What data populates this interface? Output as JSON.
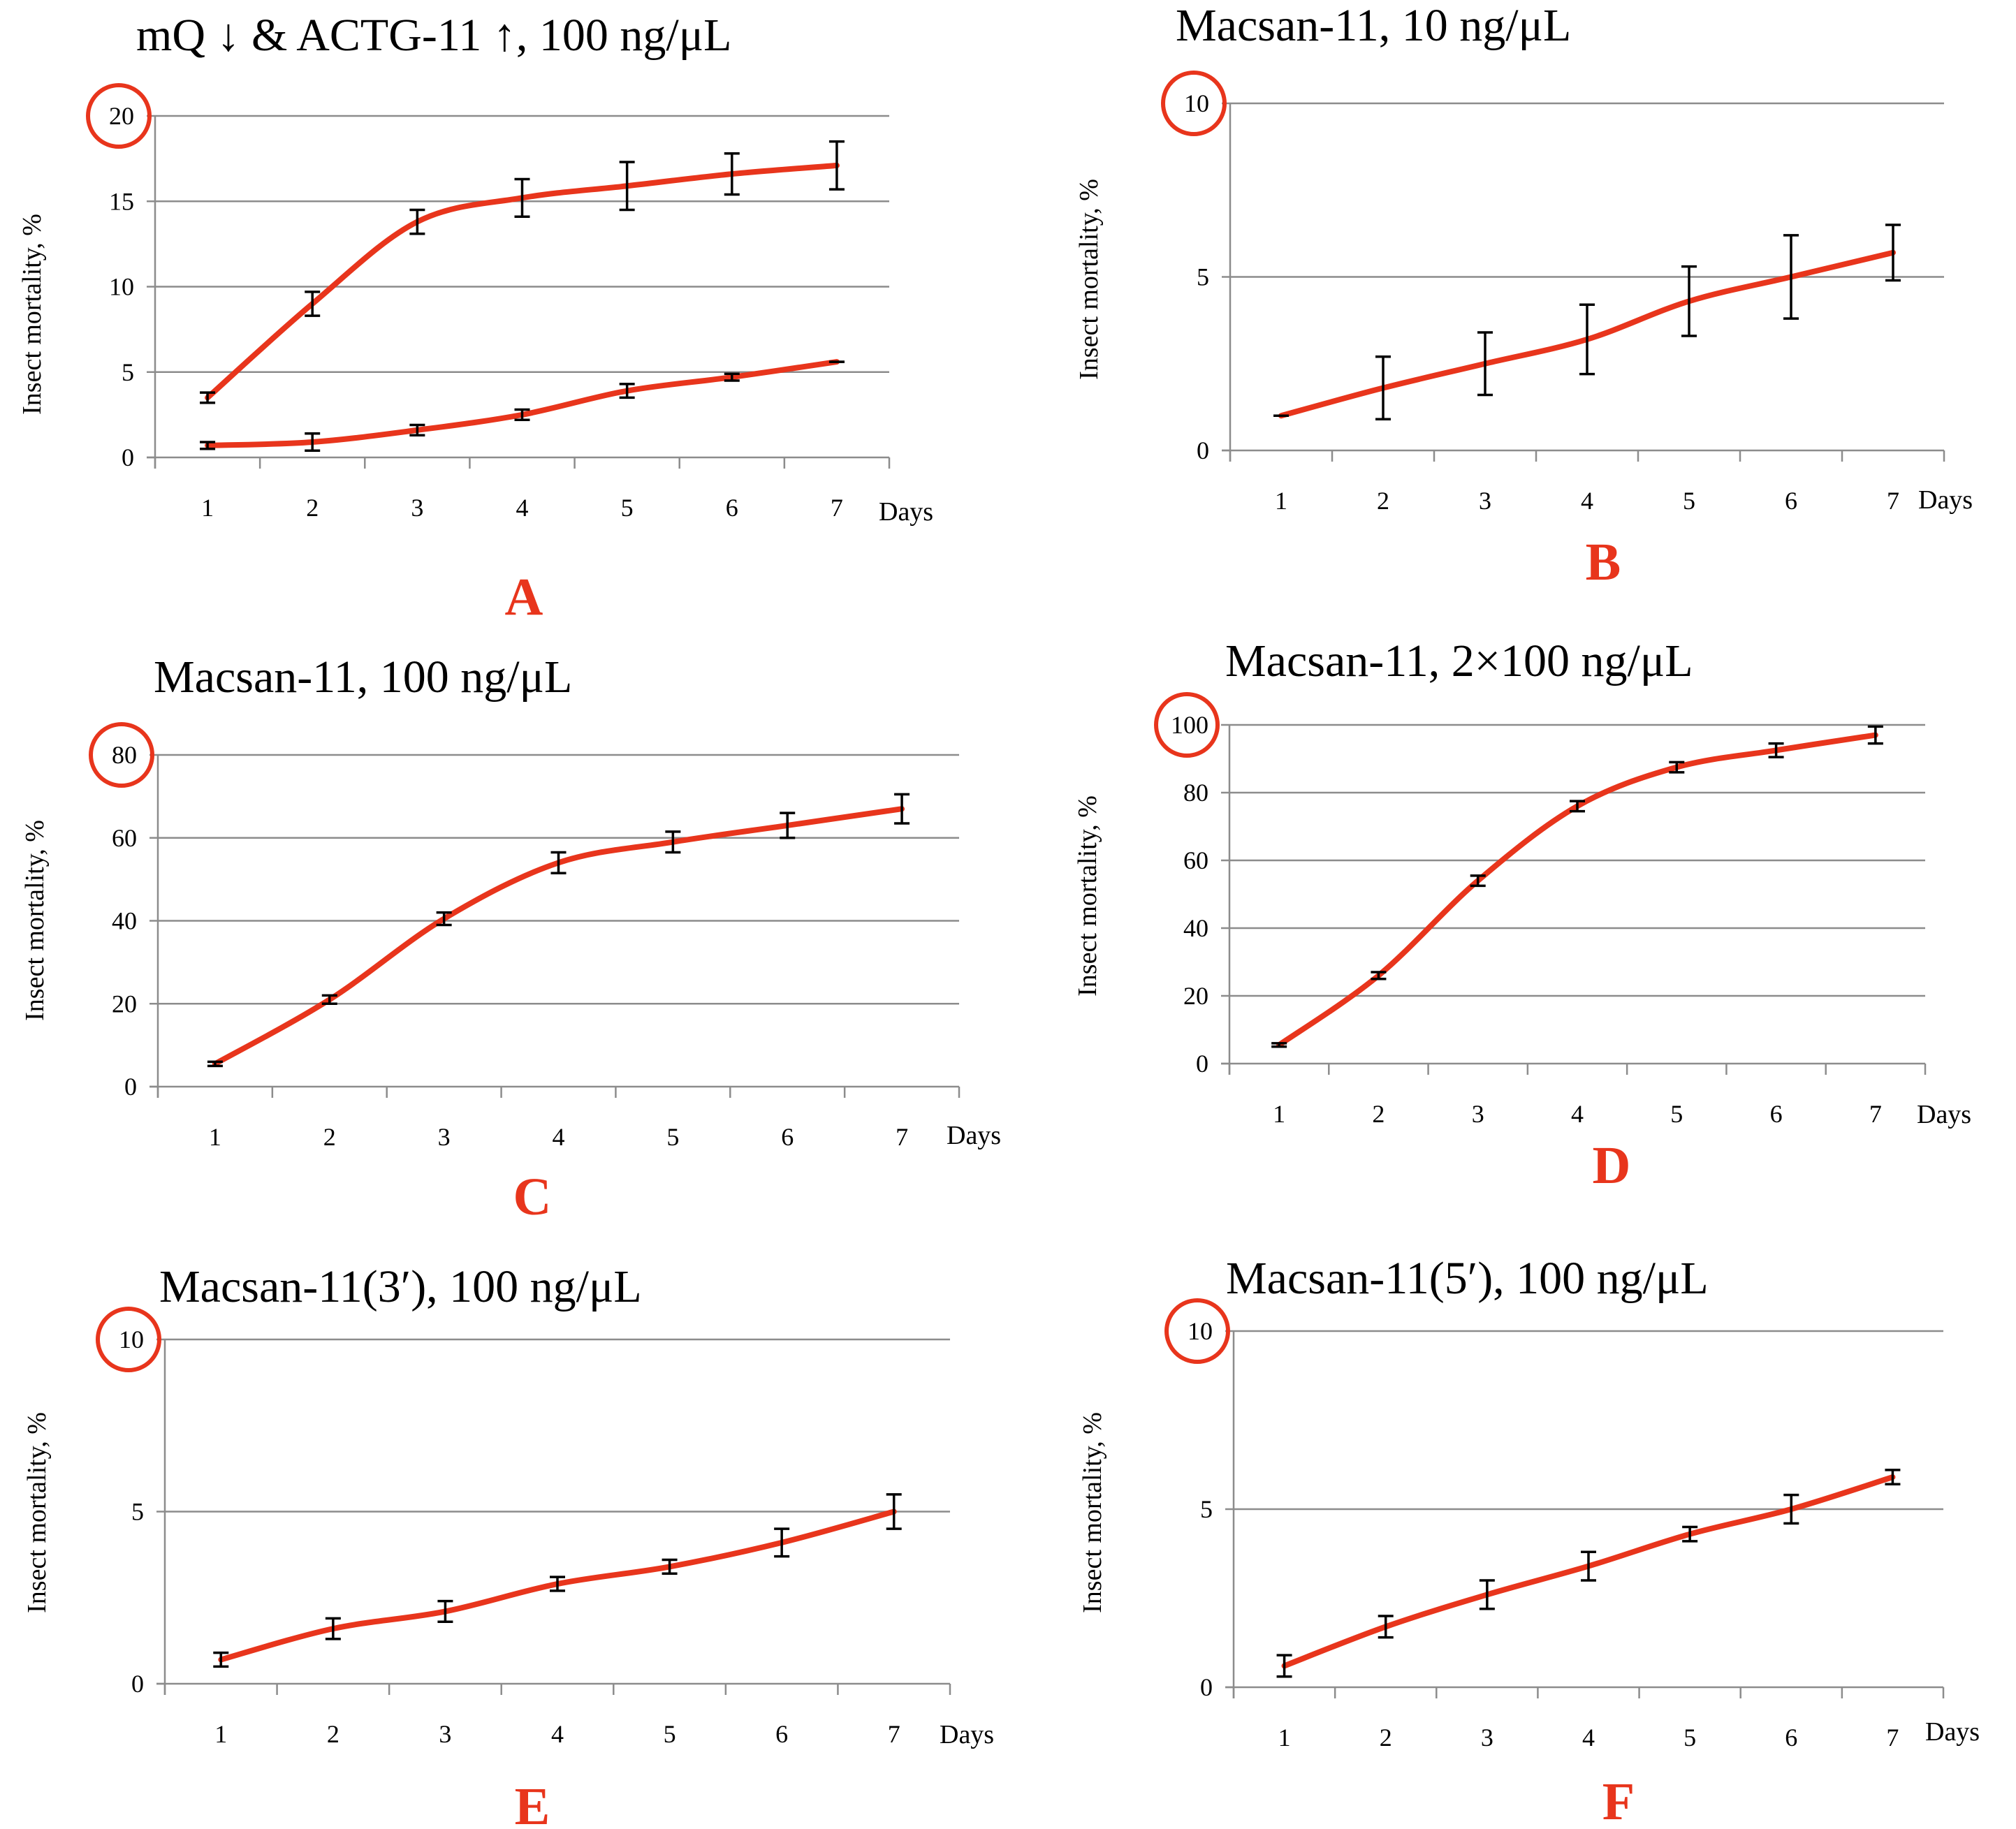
{
  "colors": {
    "series": "#e8351c",
    "highlight": "#e8351c",
    "panel_letter": "#e8351c",
    "grid": "#8c8c8c"
  },
  "chart_data": [
    {
      "type": "line",
      "panel": "A",
      "title": "mQ ↓ & ACTG-11 ↑, 100 ng/μL",
      "ylabel": "Insect mortality, %",
      "xlabel": "Days",
      "x": [
        1,
        2,
        3,
        4,
        5,
        6,
        7
      ],
      "x_tick_labels": [
        "1",
        "2",
        "3",
        "4",
        "5",
        "6",
        "7"
      ],
      "ylim": [
        0,
        20
      ],
      "y_ticks": [
        0,
        5,
        10,
        15,
        20
      ],
      "y_tick_labels": [
        "0",
        "5",
        "10",
        "15",
        "20"
      ],
      "highlighted_tick": "20",
      "series": [
        {
          "name": "ACTG-11",
          "values": [
            3.5,
            9.0,
            13.8,
            15.2,
            15.9,
            16.6,
            17.1
          ],
          "errors": [
            0.3,
            0.7,
            0.7,
            1.1,
            1.4,
            1.2,
            1.4
          ]
        },
        {
          "name": "mQ",
          "values": [
            0.7,
            0.9,
            1.6,
            2.5,
            3.9,
            4.7,
            5.6
          ],
          "errors": [
            0.2,
            0.5,
            0.3,
            0.3,
            0.4,
            0.2,
            0.0
          ]
        }
      ]
    },
    {
      "type": "line",
      "panel": "B",
      "title": "Macsan-11, 10 ng/μL",
      "ylabel": "Insect mortality, %",
      "xlabel": "Days",
      "x": [
        1,
        2,
        3,
        4,
        5,
        6,
        7
      ],
      "x_tick_labels": [
        "1",
        "2",
        "3",
        "4",
        "5",
        "6",
        "7"
      ],
      "ylim": [
        0,
        10
      ],
      "y_ticks": [
        0,
        5,
        10
      ],
      "y_tick_labels": [
        "0",
        "5",
        "10"
      ],
      "highlighted_tick": "10",
      "series": [
        {
          "name": "Macsan-11",
          "values": [
            1.0,
            1.8,
            2.5,
            3.2,
            4.3,
            5.0,
            5.7
          ],
          "errors": [
            0.0,
            0.9,
            0.9,
            1.0,
            1.0,
            1.2,
            0.8
          ]
        }
      ]
    },
    {
      "type": "line",
      "panel": "C",
      "title": "Macsan-11, 100 ng/μL",
      "ylabel": "Insect mortality, %",
      "xlabel": "Days",
      "x": [
        1,
        2,
        3,
        4,
        5,
        6,
        7
      ],
      "x_tick_labels": [
        "1",
        "2",
        "3",
        "4",
        "5",
        "6",
        "7"
      ],
      "ylim": [
        0,
        80
      ],
      "y_ticks": [
        0,
        20,
        40,
        60,
        80
      ],
      "y_tick_labels": [
        "0",
        "20",
        "40",
        "60",
        "80"
      ],
      "highlighted_tick": "80",
      "series": [
        {
          "name": "Macsan-11",
          "values": [
            5.5,
            21.0,
            40.5,
            54.0,
            59.0,
            63.0,
            67.0
          ],
          "errors": [
            0.5,
            1.0,
            1.5,
            2.5,
            2.5,
            3.0,
            3.5
          ]
        }
      ]
    },
    {
      "type": "line",
      "panel": "D",
      "title": "Macsan-11, 2×100 ng/μL",
      "ylabel": "Insect mortality, %",
      "xlabel": "Days",
      "x": [
        1,
        2,
        3,
        4,
        5,
        6,
        7
      ],
      "x_tick_labels": [
        "1",
        "2",
        "3",
        "4",
        "5",
        "6",
        "7"
      ],
      "ylim": [
        0,
        100
      ],
      "y_ticks": [
        0,
        20,
        40,
        60,
        80,
        100
      ],
      "y_tick_labels": [
        "0",
        "20",
        "40",
        "60",
        "80",
        "100"
      ],
      "highlighted_tick": "100",
      "series": [
        {
          "name": "Macsan-11",
          "values": [
            5.5,
            26.0,
            54.0,
            76.0,
            87.5,
            92.5,
            97.0
          ],
          "errors": [
            0.5,
            1.0,
            1.5,
            1.5,
            1.5,
            2.0,
            2.5
          ]
        }
      ]
    },
    {
      "type": "line",
      "panel": "E",
      "title": "Macsan-11(3′), 100 ng/μL",
      "ylabel": "Insect mortality, %",
      "xlabel": "Days",
      "x": [
        1,
        2,
        3,
        4,
        5,
        6,
        7
      ],
      "x_tick_labels": [
        "1",
        "2",
        "3",
        "4",
        "5",
        "6",
        "7"
      ],
      "ylim": [
        0,
        10
      ],
      "y_ticks": [
        0,
        5,
        10
      ],
      "y_tick_labels": [
        "0",
        "5",
        "10"
      ],
      "highlighted_tick": "10",
      "series": [
        {
          "name": "Macsan-11(3′)",
          "values": [
            0.7,
            1.6,
            2.1,
            2.9,
            3.4,
            4.1,
            5.0
          ],
          "errors": [
            0.2,
            0.3,
            0.3,
            0.2,
            0.2,
            0.4,
            0.5
          ]
        }
      ]
    },
    {
      "type": "line",
      "panel": "F",
      "title": "Macsan-11(5′), 100 ng/μL",
      "ylabel": "Insect mortality, %",
      "xlabel": "Days",
      "x": [
        1,
        2,
        3,
        4,
        5,
        6,
        7
      ],
      "x_tick_labels": [
        "1",
        "2",
        "3",
        "4",
        "5",
        "6",
        "7"
      ],
      "ylim": [
        0,
        10
      ],
      "y_ticks": [
        0,
        5,
        10
      ],
      "y_tick_labels": [
        "0",
        "5",
        "10"
      ],
      "highlighted_tick": "10",
      "series": [
        {
          "name": "Macsan-11(5′)",
          "values": [
            0.6,
            1.7,
            2.6,
            3.4,
            4.3,
            5.0,
            5.9
          ],
          "errors": [
            0.3,
            0.3,
            0.4,
            0.4,
            0.2,
            0.4,
            0.2
          ]
        }
      ]
    }
  ]
}
